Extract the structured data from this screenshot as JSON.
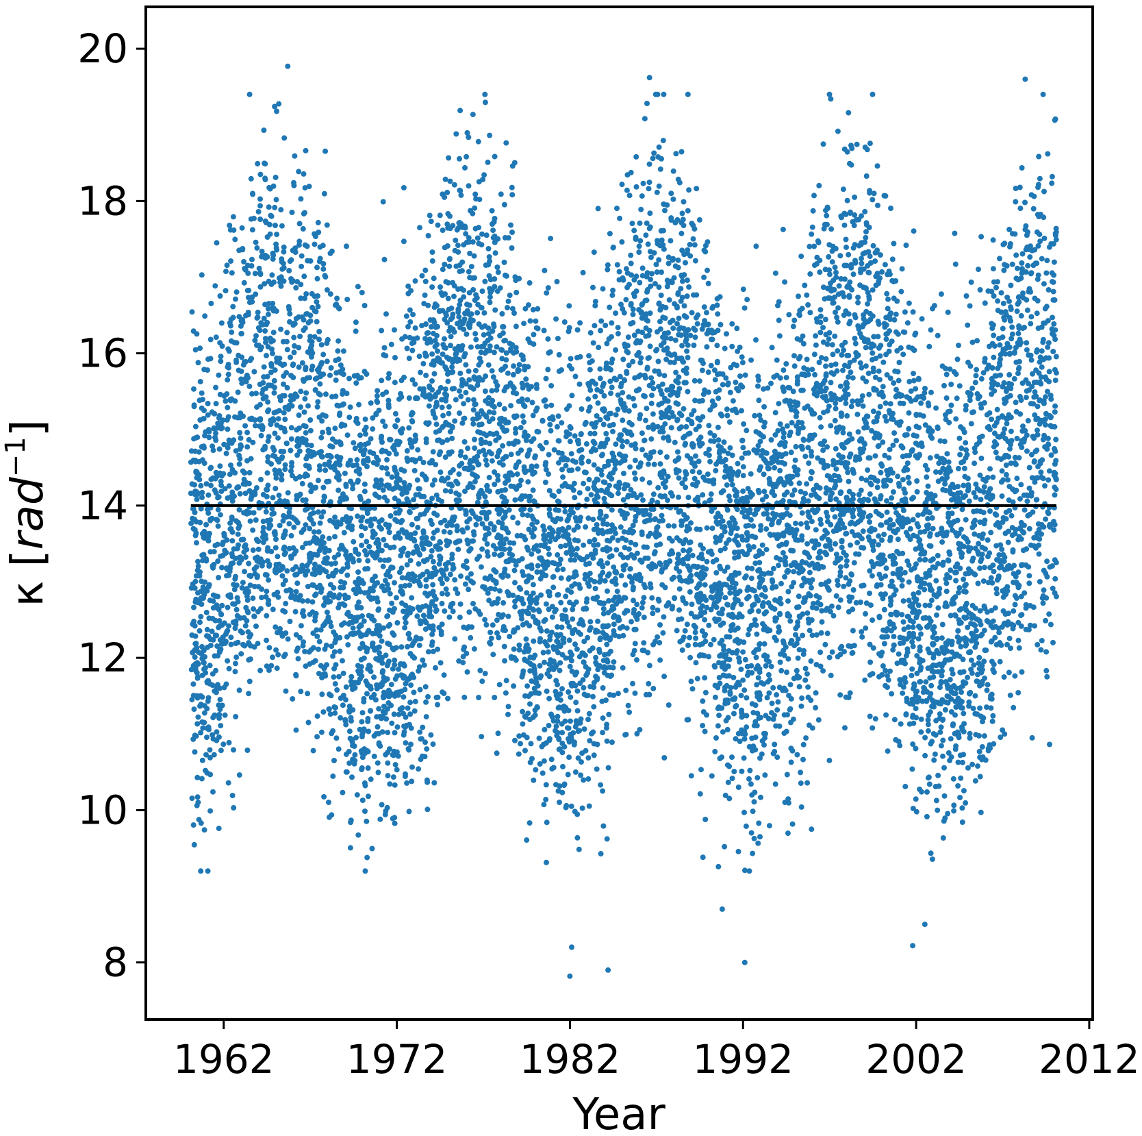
{
  "chart_data": {
    "type": "scatter",
    "title": "",
    "xlabel": "Year",
    "ylabel_parts": [
      "κ [",
      "rad",
      "−1",
      "]"
    ],
    "xlim": [
      1957.5,
      2012.2
    ],
    "ylim": [
      7.25,
      20.55
    ],
    "x_ticks": [
      1962,
      1972,
      1982,
      1992,
      2002,
      2012
    ],
    "y_ticks": [
      8,
      10,
      12,
      14,
      16,
      18,
      20
    ],
    "grid": false,
    "legend": "none",
    "point_color": "#1f77b4",
    "reference_line": {
      "y": 14.0,
      "x_range": [
        1960.1,
        2010.1
      ],
      "color": "#000000"
    },
    "series_description": {
      "x_range": [
        1960.1,
        2010.1
      ],
      "mean": 14.0,
      "approx_sample_count": 18262,
      "annual_cycle_pattern": "dense scatter between ~9.5 and ~19.5 with roughly 11-year oscillation of the upper and lower envelopes",
      "outliers": [
        {
          "x": 1965.7,
          "y": 19.77
        },
        {
          "x": 1986.6,
          "y": 19.62
        },
        {
          "x": 2008.3,
          "y": 19.6
        },
        {
          "x": 1982.0,
          "y": 7.82
        },
        {
          "x": 1984.2,
          "y": 7.9
        },
        {
          "x": 1992.1,
          "y": 8.0
        },
        {
          "x": 2001.8,
          "y": 8.22
        },
        {
          "x": 1982.1,
          "y": 8.2
        },
        {
          "x": 2002.5,
          "y": 8.5
        },
        {
          "x": 1990.8,
          "y": 8.7
        }
      ]
    }
  }
}
